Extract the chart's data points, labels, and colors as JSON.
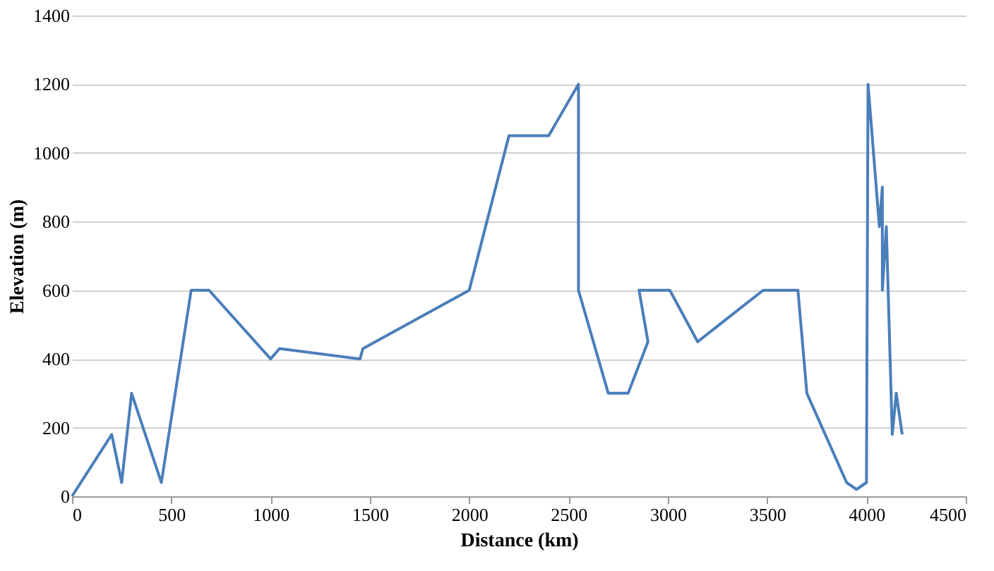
{
  "chart_data": {
    "type": "line",
    "xlabel": "Distance (km)",
    "ylabel": "Elevation (m)",
    "x": [
      0,
      200,
      250,
      300,
      450,
      600,
      690,
      1000,
      1045,
      1450,
      1465,
      2000,
      2200,
      2400,
      2550,
      2550,
      2700,
      2800,
      2900,
      2855,
      3010,
      3150,
      3480,
      3655,
      3700,
      3900,
      3950,
      4000,
      4008,
      4065,
      4080,
      4080,
      4100,
      4130,
      4150,
      4180
    ],
    "series": [
      {
        "color": "#4a7ebb",
        "values": [
          0,
          180,
          40,
          300,
          40,
          600,
          600,
          400,
          430,
          400,
          430,
          600,
          1050,
          1050,
          1200,
          600,
          300,
          300,
          450,
          600,
          600,
          450,
          600,
          600,
          300,
          40,
          20,
          40,
          1200,
          785,
          900,
          600,
          785,
          180,
          300,
          180
        ]
      }
    ],
    "xlim": [
      0,
      4500
    ],
    "xticks": [
      0,
      500,
      1000,
      1500,
      2000,
      2500,
      3000,
      3500,
      4000,
      4500
    ],
    "ylim": [
      0,
      1400
    ],
    "yticks": [
      0,
      200,
      400,
      600,
      800,
      1000,
      1200,
      1400
    ],
    "grid": "y",
    "marker": "none",
    "line_style": "solid",
    "legend": false
  }
}
